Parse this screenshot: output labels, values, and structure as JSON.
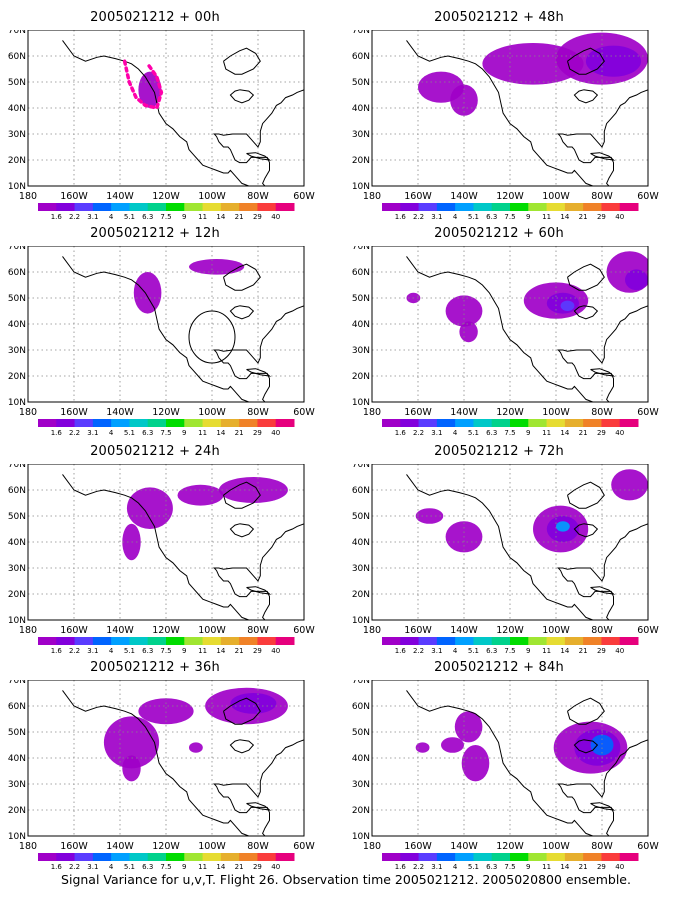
{
  "caption": "Signal Variance for u,v,T. Flight 26. Observation time 2005021212. 2005020800 ensemble.",
  "colors": {
    "scale": [
      "#a000c8",
      "#8200dc",
      "#5a3cff",
      "#0064ff",
      "#00a0ff",
      "#00c8c8",
      "#00d28c",
      "#00dc00",
      "#a0e632",
      "#e6dc32",
      "#e6af2d",
      "#f08228",
      "#fa3c3c",
      "#e6007d"
    ],
    "mask": "#ff00aa",
    "gridline": "#888888",
    "coast": "#000000"
  },
  "chart_data": [
    {
      "type": "heatmap",
      "title": "2005021212 + 00h",
      "lon_range": [
        180,
        300
      ],
      "lat_range": [
        10,
        70
      ],
      "x_ticks": [
        "180",
        "160W",
        "140W",
        "120W",
        "100W",
        "80W",
        "60W"
      ],
      "y_ticks": [
        "10N",
        "20N",
        "30N",
        "40N",
        "50N",
        "60N",
        "70N"
      ],
      "colorbar": [
        "1.6",
        "2.2",
        "3.1",
        "4",
        "5.1",
        "6.3",
        "7.5",
        "9",
        "11",
        "14",
        "21",
        "29",
        "40"
      ],
      "blobs": [
        {
          "lon": 233,
          "lat": 47,
          "rlon": 5,
          "rlat": 7,
          "level": 0
        }
      ],
      "flight_track": [
        [
          222,
          58
        ],
        [
          224,
          50
        ],
        [
          227,
          44
        ],
        [
          231,
          41
        ],
        [
          236,
          40
        ],
        [
          238,
          46
        ],
        [
          236,
          52
        ],
        [
          232,
          57
        ]
      ],
      "grid": true
    },
    {
      "type": "heatmap",
      "title": "2005021212 + 48h",
      "lon_range": [
        180,
        300
      ],
      "lat_range": [
        10,
        70
      ],
      "x_ticks": [
        "180",
        "160W",
        "140W",
        "120W",
        "100W",
        "80W",
        "60W"
      ],
      "y_ticks": [
        "10N",
        "20N",
        "30N",
        "40N",
        "50N",
        "60N",
        "70N"
      ],
      "colorbar": [
        "1.6",
        "2.2",
        "3.1",
        "4",
        "5.1",
        "6.3",
        "7.5",
        "9",
        "11",
        "14",
        "21",
        "29",
        "40"
      ],
      "blobs": [
        {
          "lon": 210,
          "lat": 48,
          "rlon": 10,
          "rlat": 6,
          "level": 0
        },
        {
          "lon": 220,
          "lat": 43,
          "rlon": 6,
          "rlat": 6,
          "level": 0
        },
        {
          "lon": 250,
          "lat": 57,
          "rlon": 22,
          "rlat": 8,
          "level": 0
        },
        {
          "lon": 280,
          "lat": 59,
          "rlon": 20,
          "rlat": 10,
          "level": 0
        },
        {
          "lon": 285,
          "lat": 58,
          "rlon": 12,
          "rlat": 6,
          "level": 1
        }
      ],
      "grid": true
    },
    {
      "type": "heatmap",
      "title": "2005021212 + 12h",
      "lon_range": [
        180,
        300
      ],
      "lat_range": [
        10,
        70
      ],
      "x_ticks": [
        "180",
        "160W",
        "140W",
        "120W",
        "100W",
        "80W",
        "60W"
      ],
      "y_ticks": [
        "10N",
        "20N",
        "30N",
        "40N",
        "50N",
        "60N",
        "70N"
      ],
      "colorbar": [
        "1.6",
        "2.2",
        "3.1",
        "4",
        "5.1",
        "6.3",
        "7.5",
        "9",
        "11",
        "14",
        "21",
        "29",
        "40"
      ],
      "blobs": [
        {
          "lon": 232,
          "lat": 52,
          "rlon": 6,
          "rlat": 8,
          "level": 0
        },
        {
          "lon": 262,
          "lat": 62,
          "rlon": 12,
          "rlat": 3,
          "level": 0
        }
      ],
      "circle": {
        "lon": 260,
        "lat": 35,
        "r": 10
      },
      "grid": true
    },
    {
      "type": "heatmap",
      "title": "2005021212 + 60h",
      "lon_range": [
        180,
        300
      ],
      "lat_range": [
        10,
        70
      ],
      "x_ticks": [
        "180",
        "160W",
        "140W",
        "120W",
        "100W",
        "80W",
        "60W"
      ],
      "y_ticks": [
        "10N",
        "20N",
        "30N",
        "40N",
        "50N",
        "60N",
        "70N"
      ],
      "colorbar": [
        "1.6",
        "2.2",
        "3.1",
        "4",
        "5.1",
        "6.3",
        "7.5",
        "9",
        "11",
        "14",
        "21",
        "29",
        "40"
      ],
      "blobs": [
        {
          "lon": 198,
          "lat": 50,
          "rlon": 3,
          "rlat": 2,
          "level": 0
        },
        {
          "lon": 220,
          "lat": 45,
          "rlon": 8,
          "rlat": 6,
          "level": 0
        },
        {
          "lon": 222,
          "lat": 37,
          "rlon": 4,
          "rlat": 4,
          "level": 0
        },
        {
          "lon": 260,
          "lat": 49,
          "rlon": 14,
          "rlat": 7,
          "level": 0
        },
        {
          "lon": 263,
          "lat": 48,
          "rlon": 7,
          "rlat": 4,
          "level": 1
        },
        {
          "lon": 265,
          "lat": 47,
          "rlon": 3,
          "rlat": 2,
          "level": 2
        },
        {
          "lon": 292,
          "lat": 60,
          "rlon": 10,
          "rlat": 8,
          "level": 0
        },
        {
          "lon": 295,
          "lat": 57,
          "rlon": 5,
          "rlat": 4,
          "level": 1
        }
      ],
      "grid": true
    },
    {
      "type": "heatmap",
      "title": "2005021212 + 24h",
      "lon_range": [
        180,
        300
      ],
      "lat_range": [
        10,
        70
      ],
      "x_ticks": [
        "180",
        "160W",
        "140W",
        "120W",
        "100W",
        "80W",
        "60W"
      ],
      "y_ticks": [
        "10N",
        "20N",
        "30N",
        "40N",
        "50N",
        "60N",
        "70N"
      ],
      "colorbar": [
        "1.6",
        "2.2",
        "3.1",
        "4",
        "5.1",
        "6.3",
        "7.5",
        "9",
        "11",
        "14",
        "21",
        "29",
        "40"
      ],
      "blobs": [
        {
          "lon": 233,
          "lat": 53,
          "rlon": 10,
          "rlat": 8,
          "level": 0
        },
        {
          "lon": 225,
          "lat": 40,
          "rlon": 4,
          "rlat": 7,
          "level": 0
        },
        {
          "lon": 255,
          "lat": 58,
          "rlon": 10,
          "rlat": 4,
          "level": 0
        },
        {
          "lon": 278,
          "lat": 60,
          "rlon": 15,
          "rlat": 5,
          "level": 0
        }
      ],
      "grid": true
    },
    {
      "type": "heatmap",
      "title": "2005021212 + 72h",
      "lon_range": [
        180,
        300
      ],
      "lat_range": [
        10,
        70
      ],
      "x_ticks": [
        "180",
        "160W",
        "140W",
        "120W",
        "100W",
        "80W",
        "60W"
      ],
      "y_ticks": [
        "10N",
        "20N",
        "30N",
        "40N",
        "50N",
        "60N",
        "70N"
      ],
      "colorbar": [
        "1.6",
        "2.2",
        "3.1",
        "4",
        "5.1",
        "6.3",
        "7.5",
        "9",
        "11",
        "14",
        "21",
        "29",
        "40"
      ],
      "blobs": [
        {
          "lon": 205,
          "lat": 50,
          "rlon": 6,
          "rlat": 3,
          "level": 0
        },
        {
          "lon": 220,
          "lat": 42,
          "rlon": 8,
          "rlat": 6,
          "level": 0
        },
        {
          "lon": 262,
          "lat": 45,
          "rlon": 12,
          "rlat": 9,
          "level": 0
        },
        {
          "lon": 263,
          "lat": 45,
          "rlon": 7,
          "rlat": 5,
          "level": 1
        },
        {
          "lon": 263,
          "lat": 46,
          "rlon": 3,
          "rlat": 2,
          "level": 4
        },
        {
          "lon": 292,
          "lat": 62,
          "rlon": 8,
          "rlat": 6,
          "level": 0
        }
      ],
      "grid": true
    },
    {
      "type": "heatmap",
      "title": "2005021212 + 36h",
      "lon_range": [
        180,
        300
      ],
      "lat_range": [
        10,
        70
      ],
      "x_ticks": [
        "180",
        "160W",
        "140W",
        "120W",
        "100W",
        "80W",
        "60W"
      ],
      "y_ticks": [
        "10N",
        "20N",
        "30N",
        "40N",
        "50N",
        "60N",
        "70N"
      ],
      "colorbar": [
        "1.6",
        "2.2",
        "3.1",
        "4",
        "5.1",
        "6.3",
        "7.5",
        "9",
        "11",
        "14",
        "21",
        "29",
        "40"
      ],
      "blobs": [
        {
          "lon": 225,
          "lat": 46,
          "rlon": 12,
          "rlat": 10,
          "level": 0
        },
        {
          "lon": 225,
          "lat": 36,
          "rlon": 4,
          "rlat": 5,
          "level": 0
        },
        {
          "lon": 240,
          "lat": 58,
          "rlon": 12,
          "rlat": 5,
          "level": 0
        },
        {
          "lon": 275,
          "lat": 60,
          "rlon": 18,
          "rlat": 7,
          "level": 0
        },
        {
          "lon": 278,
          "lat": 61,
          "rlon": 10,
          "rlat": 4,
          "level": 1
        },
        {
          "lon": 253,
          "lat": 44,
          "rlon": 3,
          "rlat": 2,
          "level": 0
        }
      ],
      "grid": true
    },
    {
      "type": "heatmap",
      "title": "2005021212 + 84h",
      "lon_range": [
        180,
        300
      ],
      "lat_range": [
        10,
        70
      ],
      "x_ticks": [
        "180",
        "160W",
        "140W",
        "120W",
        "100W",
        "80W",
        "60W"
      ],
      "y_ticks": [
        "10N",
        "20N",
        "30N",
        "40N",
        "50N",
        "60N",
        "70N"
      ],
      "colorbar": [
        "1.6",
        "2.2",
        "3.1",
        "4",
        "5.1",
        "6.3",
        "7.5",
        "9",
        "11",
        "14",
        "21",
        "29",
        "40"
      ],
      "blobs": [
        {
          "lon": 202,
          "lat": 44,
          "rlon": 3,
          "rlat": 2,
          "level": 0
        },
        {
          "lon": 222,
          "lat": 52,
          "rlon": 6,
          "rlat": 6,
          "level": 0
        },
        {
          "lon": 215,
          "lat": 45,
          "rlon": 5,
          "rlat": 3,
          "level": 0
        },
        {
          "lon": 225,
          "lat": 38,
          "rlon": 6,
          "rlat": 7,
          "level": 0
        },
        {
          "lon": 275,
          "lat": 44,
          "rlon": 16,
          "rlat": 10,
          "level": 0
        },
        {
          "lon": 278,
          "lat": 44,
          "rlon": 10,
          "rlat": 7,
          "level": 1
        },
        {
          "lon": 280,
          "lat": 45,
          "rlon": 5,
          "rlat": 4,
          "level": 3
        }
      ],
      "grid": true
    }
  ]
}
